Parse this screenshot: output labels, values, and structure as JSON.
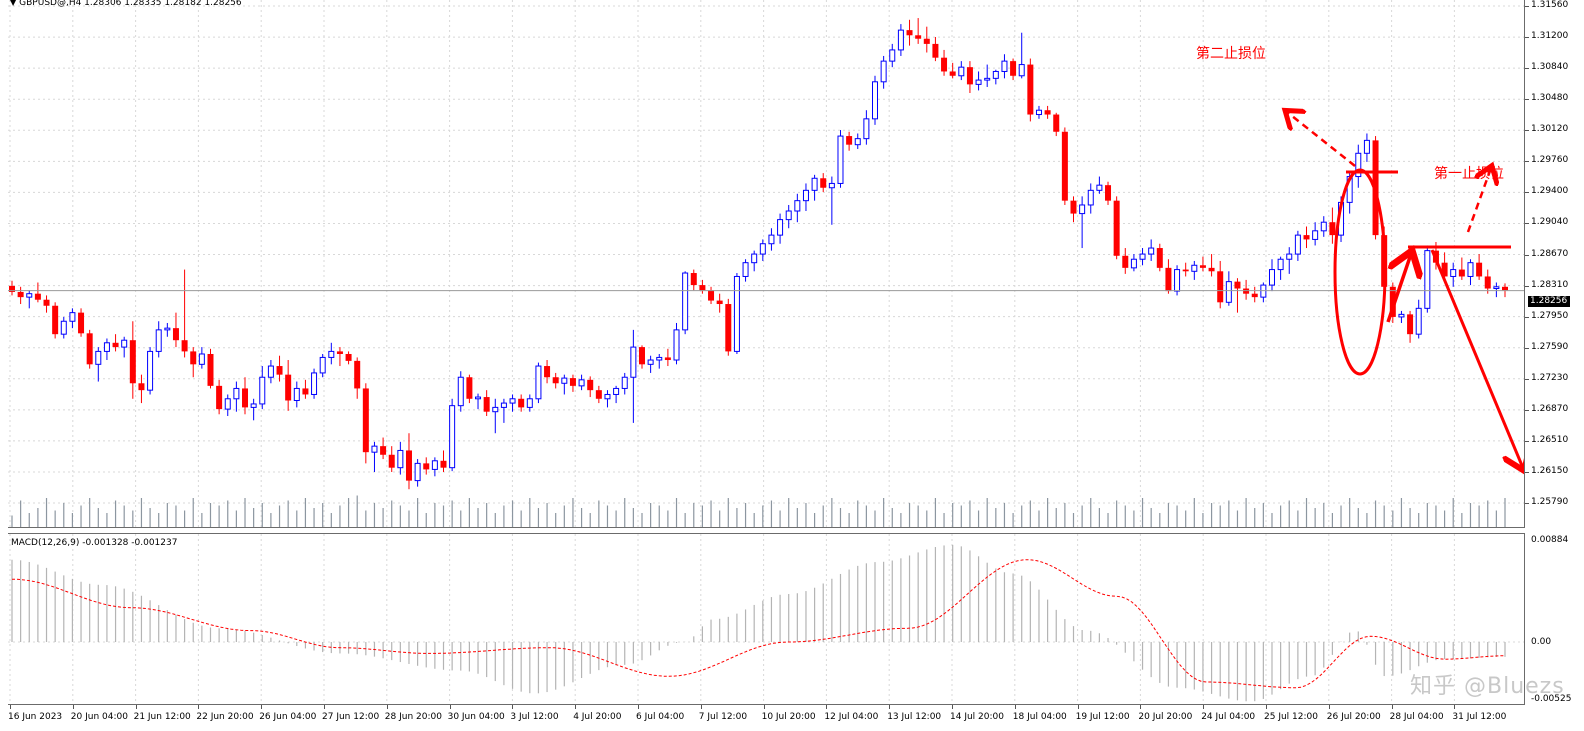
{
  "chart": {
    "symbol_info": "GBPUSD@,H4  1.28306 1.28335 1.28182 1.28256",
    "macd_info": "MACD(12,26,9) -0.001328 -0.001237",
    "current_price": "1.28256",
    "price_ticks": [
      "1.31560",
      "1.31200",
      "1.30840",
      "1.30480",
      "1.30120",
      "1.29760",
      "1.29400",
      "1.29040",
      "1.28670",
      "1.28310",
      "1.27950",
      "1.27590",
      "1.27230",
      "1.26870",
      "1.26510",
      "1.26150",
      "1.25790"
    ],
    "macd_ticks": [
      "0.00884",
      "0.00",
      "-0.00525"
    ],
    "time_labels": [
      "16 Jun 2023",
      "20 Jun 04:00",
      "21 Jun 12:00",
      "22 Jun 20:00",
      "26 Jun 04:00",
      "27 Jun 12:00",
      "28 Jun 20:00",
      "30 Jun 04:00",
      "3 Jul 12:00",
      "4 Jul 20:00",
      "6 Jul 04:00",
      "7 Jul 12:00",
      "10 Jul 20:00",
      "12 Jul 04:00",
      "13 Jul 12:00",
      "14 Jul 20:00",
      "18 Jul 04:00",
      "19 Jul 12:00",
      "20 Jul 20:00",
      "24 Jul 04:00",
      "25 Jul 12:00",
      "26 Jul 20:00",
      "28 Jul 04:00",
      "31 Jul 12:00"
    ],
    "annotations": {
      "second_stop": "第二止损位",
      "first_stop": "第一止损位"
    },
    "watermark": "知乎 @Bluezs",
    "colors": {
      "bull": "#0000ff",
      "bear": "#ff0000",
      "grid": "#d8d8d8",
      "macd_hist": "#b4b4b4",
      "macd_signal": "#ff0000",
      "volume": "#8c96a0",
      "annotation": "#ff0000"
    }
  },
  "chart_data": {
    "type": "candlestick",
    "title": "GBPUSD@,H4",
    "ylim": [
      1.2579,
      1.3156
    ],
    "candles": [
      [
        1.2831,
        1.2837,
        1.282,
        1.2824
      ],
      [
        1.2824,
        1.283,
        1.281,
        1.2818
      ],
      [
        1.2818,
        1.2826,
        1.2805,
        1.2822
      ],
      [
        1.2822,
        1.2835,
        1.2812,
        1.2815
      ],
      [
        1.2815,
        1.282,
        1.28,
        1.2808
      ],
      [
        1.2808,
        1.2812,
        1.277,
        1.2775
      ],
      [
        1.2775,
        1.2795,
        1.277,
        1.279
      ],
      [
        1.279,
        1.2805,
        1.2782,
        1.28
      ],
      [
        1.28,
        1.2805,
        1.2772,
        1.2776
      ],
      [
        1.2776,
        1.278,
        1.2735,
        1.274
      ],
      [
        1.274,
        1.276,
        1.272,
        1.2755
      ],
      [
        1.2755,
        1.277,
        1.2745,
        1.2765
      ],
      [
        1.2765,
        1.2775,
        1.2755,
        1.276
      ],
      [
        1.276,
        1.2772,
        1.2748,
        1.2768
      ],
      [
        1.2768,
        1.279,
        1.27,
        1.2718
      ],
      [
        1.2718,
        1.2728,
        1.2695,
        1.271
      ],
      [
        1.271,
        1.276,
        1.2705,
        1.2755
      ],
      [
        1.2755,
        1.279,
        1.2748,
        1.278
      ],
      [
        1.278,
        1.2788,
        1.2772,
        1.2782
      ],
      [
        1.2782,
        1.28,
        1.276,
        1.2768
      ],
      [
        1.2768,
        1.285,
        1.2748,
        1.2755
      ],
      [
        1.2755,
        1.276,
        1.2725,
        1.274
      ],
      [
        1.274,
        1.276,
        1.2735,
        1.2752
      ],
      [
        1.2752,
        1.2758,
        1.2712,
        1.2715
      ],
      [
        1.2715,
        1.2722,
        1.2682,
        1.2688
      ],
      [
        1.2688,
        1.2705,
        1.268,
        1.27
      ],
      [
        1.27,
        1.272,
        1.2685,
        1.2712
      ],
      [
        1.2712,
        1.2725,
        1.2682,
        1.269
      ],
      [
        1.269,
        1.27,
        1.2675,
        1.2694
      ],
      [
        1.2694,
        1.2738,
        1.2688,
        1.2725
      ],
      [
        1.2725,
        1.2745,
        1.2718,
        1.2738
      ],
      [
        1.2738,
        1.275,
        1.272,
        1.2728
      ],
      [
        1.2728,
        1.2745,
        1.2686,
        1.2698
      ],
      [
        1.2698,
        1.272,
        1.269,
        1.2712
      ],
      [
        1.2712,
        1.2722,
        1.27,
        1.2705
      ],
      [
        1.2705,
        1.2735,
        1.27,
        1.273
      ],
      [
        1.273,
        1.2752,
        1.2725,
        1.2748
      ],
      [
        1.2748,
        1.2765,
        1.274,
        1.2755
      ],
      [
        1.2755,
        1.276,
        1.2738,
        1.2752
      ],
      [
        1.2752,
        1.2755,
        1.274,
        1.2744
      ],
      [
        1.2744,
        1.2748,
        1.27,
        1.2712
      ],
      [
        1.2712,
        1.2718,
        1.2625,
        1.2638
      ],
      [
        1.2638,
        1.265,
        1.2615,
        1.2645
      ],
      [
        1.2645,
        1.2655,
        1.263,
        1.2635
      ],
      [
        1.2635,
        1.2645,
        1.2615,
        1.262
      ],
      [
        1.262,
        1.265,
        1.2612,
        1.264
      ],
      [
        1.264,
        1.266,
        1.2595,
        1.2605
      ],
      [
        1.2605,
        1.263,
        1.2598,
        1.2625
      ],
      [
        1.2625,
        1.2632,
        1.2612,
        1.2618
      ],
      [
        1.2618,
        1.2632,
        1.261,
        1.2628
      ],
      [
        1.2628,
        1.264,
        1.2615,
        1.262
      ],
      [
        1.262,
        1.27,
        1.2616,
        1.2692
      ],
      [
        1.2692,
        1.2732,
        1.2685,
        1.2725
      ],
      [
        1.2725,
        1.2728,
        1.2695,
        1.27
      ],
      [
        1.27,
        1.2706,
        1.2688,
        1.2702
      ],
      [
        1.2702,
        1.271,
        1.268,
        1.2685
      ],
      [
        1.2685,
        1.27,
        1.266,
        1.269
      ],
      [
        1.269,
        1.27,
        1.2672,
        1.2695
      ],
      [
        1.2695,
        1.2705,
        1.2685,
        1.27
      ],
      [
        1.27,
        1.2705,
        1.2685,
        1.269
      ],
      [
        1.269,
        1.2705,
        1.2685,
        1.27
      ],
      [
        1.27,
        1.2742,
        1.2695,
        1.2738
      ],
      [
        1.2738,
        1.2745,
        1.2718,
        1.2725
      ],
      [
        1.2725,
        1.273,
        1.2712,
        1.2718
      ],
      [
        1.2718,
        1.2728,
        1.2705,
        1.2724
      ],
      [
        1.2724,
        1.2728,
        1.2708,
        1.2715
      ],
      [
        1.2715,
        1.2728,
        1.271,
        1.2722
      ],
      [
        1.2722,
        1.2726,
        1.2702,
        1.271
      ],
      [
        1.271,
        1.2715,
        1.2695,
        1.27
      ],
      [
        1.27,
        1.271,
        1.269,
        1.2705
      ],
      [
        1.2705,
        1.2715,
        1.2695,
        1.2712
      ],
      [
        1.2712,
        1.273,
        1.2705,
        1.2725
      ],
      [
        1.2725,
        1.278,
        1.2672,
        1.276
      ],
      [
        1.276,
        1.2762,
        1.2735,
        1.274
      ],
      [
        1.274,
        1.275,
        1.273,
        1.2745
      ],
      [
        1.2745,
        1.2752,
        1.2735,
        1.2748
      ],
      [
        1.2748,
        1.2758,
        1.2738,
        1.2745
      ],
      [
        1.2745,
        1.2788,
        1.274,
        1.278
      ],
      [
        1.278,
        1.2848,
        1.2775,
        1.2846
      ],
      [
        1.2846,
        1.285,
        1.2826,
        1.2832
      ],
      [
        1.2832,
        1.2838,
        1.2822,
        1.2826
      ],
      [
        1.2826,
        1.283,
        1.281,
        1.2814
      ],
      [
        1.2814,
        1.2822,
        1.28,
        1.281
      ],
      [
        1.281,
        1.2816,
        1.275,
        1.2755
      ],
      [
        1.2755,
        1.2846,
        1.2752,
        1.2842
      ],
      [
        1.2842,
        1.2862,
        1.2836,
        1.2858
      ],
      [
        1.2858,
        1.2872,
        1.2848,
        1.2868
      ],
      [
        1.2868,
        1.2885,
        1.286,
        1.288
      ],
      [
        1.288,
        1.2898,
        1.2872,
        1.289
      ],
      [
        1.289,
        1.2915,
        1.288,
        1.2908
      ],
      [
        1.2908,
        1.2925,
        1.2898,
        1.2918
      ],
      [
        1.2918,
        1.2938,
        1.2905,
        1.293
      ],
      [
        1.293,
        1.295,
        1.2918,
        1.2942
      ],
      [
        1.2942,
        1.296,
        1.293,
        1.2956
      ],
      [
        1.2956,
        1.2962,
        1.294,
        1.2945
      ],
      [
        1.2945,
        1.2958,
        1.2902,
        1.295
      ],
      [
        1.295,
        1.3012,
        1.2945,
        1.3005
      ],
      [
        1.3005,
        1.301,
        1.2988,
        1.2995
      ],
      [
        1.2995,
        1.3008,
        1.299,
        1.3002
      ],
      [
        1.3002,
        1.3035,
        1.2995,
        1.3025
      ],
      [
        1.3025,
        1.3075,
        1.3018,
        1.3068
      ],
      [
        1.3068,
        1.3098,
        1.306,
        1.3092
      ],
      [
        1.3092,
        1.3112,
        1.3085,
        1.3105
      ],
      [
        1.3105,
        1.3135,
        1.3098,
        1.3128
      ],
      [
        1.3128,
        1.314,
        1.311,
        1.3122
      ],
      [
        1.3122,
        1.3142,
        1.3112,
        1.3118
      ],
      [
        1.3118,
        1.3132,
        1.3102,
        1.3112
      ],
      [
        1.3112,
        1.312,
        1.3092,
        1.3096
      ],
      [
        1.3096,
        1.3105,
        1.3075,
        1.308
      ],
      [
        1.308,
        1.309,
        1.3072,
        1.3075
      ],
      [
        1.3075,
        1.3092,
        1.307,
        1.3085
      ],
      [
        1.3085,
        1.3092,
        1.3055,
        1.3065
      ],
      [
        1.3065,
        1.308,
        1.3058,
        1.307
      ],
      [
        1.307,
        1.3088,
        1.3062,
        1.3072
      ],
      [
        1.3072,
        1.3082,
        1.3065,
        1.308
      ],
      [
        1.308,
        1.31,
        1.3072,
        1.3092
      ],
      [
        1.3092,
        1.3095,
        1.307,
        1.3075
      ],
      [
        1.3075,
        1.3125,
        1.3072,
        1.3088
      ],
      [
        1.3088,
        1.3095,
        1.3022,
        1.303
      ],
      [
        1.303,
        1.304,
        1.3025,
        1.3035
      ],
      [
        1.3035,
        1.304,
        1.3025,
        1.303
      ],
      [
        1.303,
        1.3032,
        1.3005,
        1.301
      ],
      [
        1.301,
        1.3015,
        1.2925,
        1.293
      ],
      [
        1.293,
        1.2935,
        1.2905,
        1.2915
      ],
      [
        1.2915,
        1.2935,
        1.2875,
        1.2925
      ],
      [
        1.2925,
        1.295,
        1.2915,
        1.2942
      ],
      [
        1.2942,
        1.2958,
        1.2938,
        1.2948
      ],
      [
        1.2948,
        1.2952,
        1.2925,
        1.293
      ],
      [
        1.293,
        1.2935,
        1.2862,
        1.2866
      ],
      [
        1.2866,
        1.2875,
        1.2845,
        1.2852
      ],
      [
        1.2852,
        1.2868,
        1.2848,
        1.2862
      ],
      [
        1.2862,
        1.2875,
        1.2855,
        1.2868
      ],
      [
        1.2868,
        1.2885,
        1.286,
        1.2875
      ],
      [
        1.2875,
        1.288,
        1.2848,
        1.2852
      ],
      [
        1.2852,
        1.2862,
        1.2822,
        1.2825
      ],
      [
        1.2825,
        1.2855,
        1.282,
        1.285
      ],
      [
        1.285,
        1.2858,
        1.2842,
        1.2848
      ],
      [
        1.2848,
        1.286,
        1.2838,
        1.2855
      ],
      [
        1.2855,
        1.2865,
        1.2848,
        1.2852
      ],
      [
        1.2852,
        1.2868,
        1.2842,
        1.2848
      ],
      [
        1.2848,
        1.286,
        1.2805,
        1.2812
      ],
      [
        1.2812,
        1.2848,
        1.2808,
        1.2836
      ],
      [
        1.2836,
        1.284,
        1.28,
        1.2828
      ],
      [
        1.2828,
        1.2838,
        1.2815,
        1.2822
      ],
      [
        1.2822,
        1.283,
        1.2812,
        1.2818
      ],
      [
        1.2818,
        1.2835,
        1.2812,
        1.2832
      ],
      [
        1.2832,
        1.2862,
        1.2825,
        1.285
      ],
      [
        1.285,
        1.2865,
        1.2838,
        1.2862
      ],
      [
        1.2862,
        1.2876,
        1.2845,
        1.2868
      ],
      [
        1.2868,
        1.2895,
        1.286,
        1.289
      ],
      [
        1.289,
        1.29,
        1.2875,
        1.2885
      ],
      [
        1.2885,
        1.2905,
        1.2878,
        1.2895
      ],
      [
        1.2895,
        1.2912,
        1.2888,
        1.2905
      ],
      [
        1.2905,
        1.2922,
        1.288,
        1.289
      ],
      [
        1.289,
        1.2935,
        1.2882,
        1.2928
      ],
      [
        1.2928,
        1.2962,
        1.2915,
        1.2958
      ],
      [
        1.2958,
        1.2995,
        1.2945,
        1.2985
      ],
      [
        1.2985,
        1.3008,
        1.2975,
        1.3
      ],
      [
        1.3,
        1.3005,
        1.2885,
        1.289
      ],
      [
        1.289,
        1.29,
        1.282,
        1.283
      ],
      [
        1.283,
        1.2835,
        1.2788,
        1.2795
      ],
      [
        1.2795,
        1.2802,
        1.2788,
        1.2798
      ],
      [
        1.2798,
        1.2802,
        1.2765,
        1.2775
      ],
      [
        1.2775,
        1.2815,
        1.277,
        1.2805
      ],
      [
        1.2805,
        1.2878,
        1.28,
        1.2872
      ],
      [
        1.2872,
        1.2882,
        1.285,
        1.2858
      ],
      [
        1.2858,
        1.287,
        1.2835,
        1.2842
      ],
      [
        1.2842,
        1.2858,
        1.283,
        1.285
      ],
      [
        1.285,
        1.2864,
        1.2838,
        1.2842
      ],
      [
        1.2842,
        1.2862,
        1.2832,
        1.2858
      ],
      [
        1.2858,
        1.2868,
        1.2838,
        1.2842
      ],
      [
        1.2842,
        1.285,
        1.2822,
        1.2828
      ],
      [
        1.2828,
        1.2835,
        1.2818,
        1.283
      ],
      [
        1.283,
        1.2834,
        1.2818,
        1.2826
      ]
    ],
    "volume": [
      0.25,
      0.55,
      0.3,
      0.4,
      0.6,
      0.35,
      0.5,
      0.3,
      0.45,
      0.6,
      0.4,
      0.3,
      0.55,
      0.45,
      0.35,
      0.6,
      0.4,
      0.3,
      0.5,
      0.45,
      0.35,
      0.6,
      0.3,
      0.5,
      0.45,
      0.55,
      0.35,
      0.6,
      0.4,
      0.5,
      0.3,
      0.45,
      0.55,
      0.35,
      0.6,
      0.4,
      0.5,
      0.3,
      0.45,
      0.6,
      0.65,
      0.35,
      0.5,
      0.4,
      0.55,
      0.45,
      0.35,
      0.6,
      0.3,
      0.5,
      0.45,
      0.55,
      0.35,
      0.6,
      0.4,
      0.5,
      0.3,
      0.45,
      0.55,
      0.35,
      0.6,
      0.4,
      0.5,
      0.3,
      0.45,
      0.6,
      0.4,
      0.3,
      0.55,
      0.45,
      0.35,
      0.6,
      0.4,
      0.3,
      0.5,
      0.45,
      0.35,
      0.6,
      0.3,
      0.5,
      0.45,
      0.55,
      0.35,
      0.6,
      0.4,
      0.5,
      0.3,
      0.45,
      0.55,
      0.35,
      0.6,
      0.4,
      0.5,
      0.3,
      0.45,
      0.6,
      0.4,
      0.3,
      0.55,
      0.45,
      0.35,
      0.6,
      0.4,
      0.3,
      0.5,
      0.45,
      0.35,
      0.6,
      0.3,
      0.5,
      0.45,
      0.55,
      0.35,
      0.6,
      0.4,
      0.5,
      0.3,
      0.45,
      0.55,
      0.35,
      0.6,
      0.4,
      0.5,
      0.3,
      0.45,
      0.6,
      0.4,
      0.3,
      0.55,
      0.45,
      0.35,
      0.6,
      0.4,
      0.3,
      0.5,
      0.45,
      0.35,
      0.6,
      0.3,
      0.5,
      0.45,
      0.55,
      0.35,
      0.6,
      0.4,
      0.5,
      0.3,
      0.45,
      0.55,
      0.35,
      0.6,
      0.4,
      0.5,
      0.3,
      0.45,
      0.6,
      0.4,
      0.3,
      0.55,
      0.45,
      0.35,
      0.6,
      0.4,
      0.3,
      0.5,
      0.45,
      0.35,
      0.6,
      0.3,
      0.5,
      0.45,
      0.55,
      0.35,
      0.6,
      0.4,
      0.5,
      0.3,
      0.45,
      0.55,
      0.35,
      0.6,
      0.4,
      0.5,
      0.3,
      0.45
    ],
    "macd_hist_shape": [
      [
        0,
        0.0072
      ],
      [
        0.06,
        0.005
      ],
      [
        0.14,
        0.0012
      ],
      [
        0.22,
        -0.001
      ],
      [
        0.3,
        -0.0025
      ],
      [
        0.35,
        -0.0045
      ],
      [
        0.41,
        -0.002
      ],
      [
        0.45,
        0.0
      ],
      [
        0.47,
        0.002
      ],
      [
        0.52,
        0.0042
      ],
      [
        0.58,
        0.007
      ],
      [
        0.63,
        0.0085
      ],
      [
        0.67,
        0.006
      ],
      [
        0.72,
        0.001
      ],
      [
        0.78,
        -0.004
      ],
      [
        0.83,
        -0.0052
      ],
      [
        0.87,
        -0.003
      ],
      [
        0.9,
        0.001
      ],
      [
        0.92,
        -0.003
      ],
      [
        0.96,
        -0.0015
      ],
      [
        1.0,
        -0.0013
      ]
    ],
    "macd_signal_shape": [
      [
        0,
        0.0055
      ],
      [
        0.08,
        0.003
      ],
      [
        0.16,
        0.001
      ],
      [
        0.22,
        -0.0005
      ],
      [
        0.28,
        -0.001
      ],
      [
        0.36,
        -0.0005
      ],
      [
        0.44,
        -0.003
      ],
      [
        0.52,
        0.0
      ],
      [
        0.6,
        0.0012
      ],
      [
        0.68,
        0.0072
      ],
      [
        0.74,
        0.004
      ],
      [
        0.8,
        -0.0035
      ],
      [
        0.86,
        -0.004
      ],
      [
        0.91,
        0.0005
      ],
      [
        0.96,
        -0.0015
      ],
      [
        1.0,
        -0.0012
      ]
    ],
    "macd_ylim": [
      -0.00525,
      0.00884
    ]
  }
}
